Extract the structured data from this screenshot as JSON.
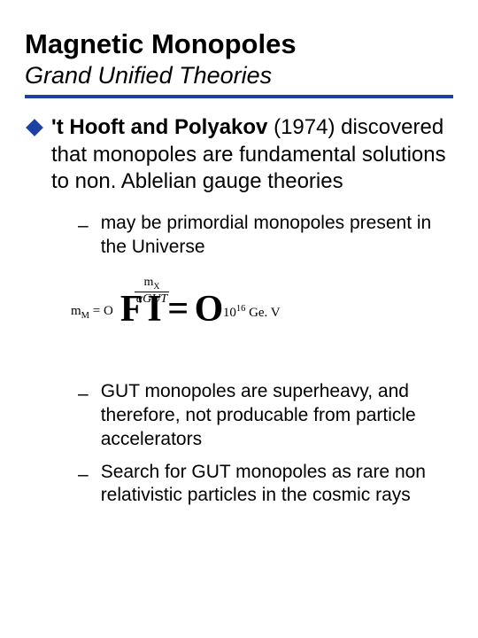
{
  "title": {
    "text": "Magnetic Monopoles",
    "fontsize": 31,
    "color": "#000000"
  },
  "subtitle": {
    "text": "Grand Unified Theories",
    "fontsize": 27,
    "color": "#000000"
  },
  "rule_color": "#1e3fa3",
  "bullet": {
    "diamond_color": "#1e3fa3",
    "fontsize": 24,
    "bold_span": "'t Hooft and Polyakov",
    "rest_span": " (1974) discovered that monopoles are fundamental solutions to non. Ablelian gauge theories"
  },
  "sub_bullets": {
    "dash": "–",
    "fontsize": 21,
    "items": [
      "may be primordial monopoles present in the Universe",
      "GUT monopoles are superheavy, and therefore, not producable from particle accelerators",
      "Search for GUT monopoles as rare non relativistic particles in the cosmic rays"
    ]
  },
  "formula": {
    "lhs": "m",
    "lhs_sub": "M",
    "eq1": " = O",
    "frac_num_a": "m",
    "frac_num_a_sub": "X",
    "frac_den": "αGUT",
    "overlay": "F I = O",
    "overlay_fontsize": 42,
    "rhs_a": "10",
    "rhs_a_sup": "16",
    "rhs_b": " Ge. V"
  }
}
